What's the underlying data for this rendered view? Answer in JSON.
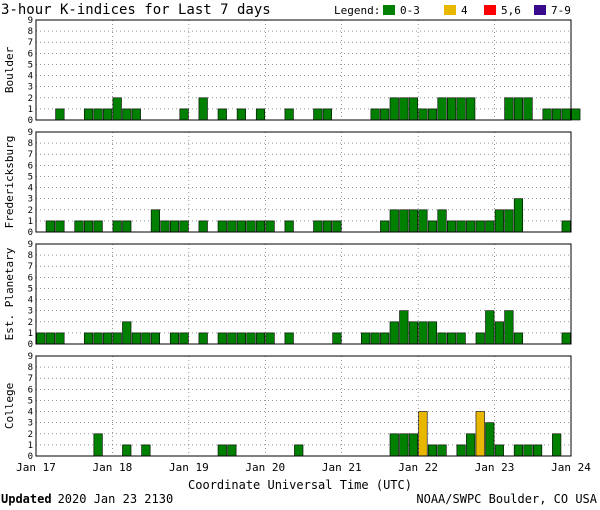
{
  "chart_data": {
    "type": "bar",
    "title": "3-hour K-indices for Last 7 days",
    "legend": {
      "label": "Legend:",
      "position": "top-right",
      "items": [
        {
          "name": "0-3",
          "color": "#008000"
        },
        {
          "name": "4",
          "color": "#e8b800"
        },
        {
          "name": "5,6",
          "color": "#ff0000"
        },
        {
          "name": "7-9",
          "color": "#3a0a8c"
        }
      ]
    },
    "ylim": [
      0,
      9
    ],
    "yticks": [
      "0",
      "1",
      "2",
      "3",
      "4",
      "5",
      "6",
      "7",
      "8",
      "9"
    ],
    "xlabel": "Coordinate Universal Time (UTC)",
    "x_tick_labels": [
      "Jan 17",
      "Jan 18",
      "Jan 19",
      "Jan 20",
      "Jan 21",
      "Jan 22",
      "Jan 23",
      "Jan 24"
    ],
    "intervals_per_day": 8,
    "grid": true,
    "panels": [
      {
        "name": "Boulder",
        "values": [
          0,
          0,
          1,
          0,
          0,
          1,
          1,
          1,
          2,
          1,
          1,
          0,
          0,
          0,
          0,
          1,
          0,
          2,
          0,
          1,
          0,
          1,
          0,
          1,
          0,
          0,
          1,
          0,
          0,
          1,
          1,
          0,
          0,
          0,
          0,
          1,
          1,
          2,
          2,
          2,
          1,
          1,
          2,
          2,
          2,
          2,
          0,
          0,
          0,
          2,
          2,
          2,
          0,
          1,
          1,
          1,
          1,
          0
        ]
      },
      {
        "name": "Fredericksburg",
        "values": [
          0,
          1,
          1,
          0,
          1,
          1,
          1,
          0,
          1,
          1,
          0,
          0,
          2,
          1,
          1,
          1,
          0,
          1,
          0,
          1,
          1,
          1,
          1,
          1,
          1,
          0,
          1,
          0,
          0,
          1,
          1,
          1,
          0,
          0,
          0,
          0,
          1,
          2,
          2,
          2,
          2,
          1,
          2,
          1,
          1,
          1,
          1,
          1,
          2,
          2,
          3,
          0,
          0,
          0,
          0,
          1,
          0,
          0
        ]
      },
      {
        "name": "Est. Planetary",
        "values": [
          1,
          1,
          1,
          0,
          0,
          1,
          1,
          1,
          1,
          2,
          1,
          1,
          1,
          0,
          1,
          1,
          0,
          1,
          0,
          1,
          1,
          1,
          1,
          1,
          1,
          0,
          1,
          0,
          0,
          0,
          0,
          1,
          0,
          0,
          1,
          1,
          1,
          2,
          3,
          2,
          2,
          2,
          1,
          1,
          1,
          0,
          1,
          3,
          2,
          3,
          1,
          0,
          0,
          0,
          0,
          1,
          0,
          0
        ]
      },
      {
        "name": "College",
        "values": [
          0,
          0,
          0,
          0,
          0,
          0,
          2,
          0,
          0,
          1,
          0,
          1,
          0,
          0,
          0,
          0,
          0,
          0,
          0,
          1,
          1,
          0,
          0,
          0,
          0,
          0,
          0,
          1,
          0,
          0,
          0,
          0,
          0,
          0,
          0,
          0,
          0,
          2,
          2,
          2,
          4,
          1,
          1,
          0,
          1,
          2,
          4,
          3,
          1,
          0,
          1,
          1,
          1,
          0,
          2,
          0,
          0,
          0
        ]
      }
    ]
  },
  "footer": {
    "updated_label": "Updated",
    "updated_value": "2020 Jan 23 2130",
    "source": "NOAA/SWPC Boulder, CO USA"
  }
}
